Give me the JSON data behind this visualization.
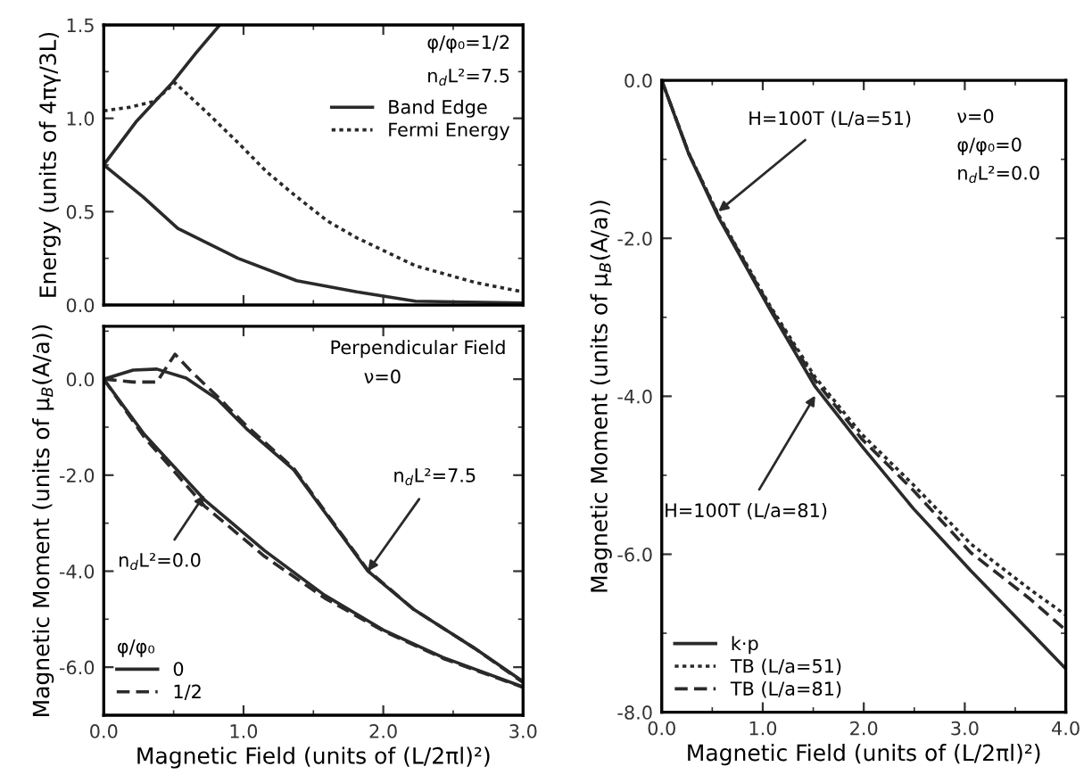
{
  "chart_data": [
    {
      "type": "line",
      "ylabel": "Energy (units of 4πγ/3L)",
      "xlim": [
        0,
        3
      ],
      "ylim": [
        0,
        1.5
      ],
      "xticks": [
        {
          "value": 0,
          "label": null
        },
        {
          "value": 1,
          "label": null
        },
        {
          "value": 2,
          "label": null
        },
        {
          "value": 3,
          "label": null
        }
      ],
      "yticks": [
        {
          "value": 0,
          "label": "0.0"
        },
        {
          "value": 0.5,
          "label": "0.5"
        },
        {
          "value": 1.0,
          "label": "1.0"
        },
        {
          "value": 1.5,
          "label": "1.5"
        }
      ],
      "tick_labels": "y",
      "grid": false,
      "legend": "top right",
      "annotations": [
        "φ/φ₀=1/2",
        "n$_{d}$L²=7.5"
      ],
      "series": [
        {
          "name": "Band Edge",
          "color": "#2a2a2a",
          "line_style": "solid",
          "x": [
            0,
            0.23,
            0.49,
            0.66,
            0.83
          ],
          "values": [
            0.75,
            0.98,
            1.19,
            1.35,
            1.5
          ]
        },
        {
          "color": "#2a2a2a",
          "line_style": "solid",
          "x": [
            0,
            0.28,
            0.53,
            0.96,
            1.38,
            1.81,
            2.23,
            3.0
          ],
          "values": [
            0.75,
            0.58,
            0.41,
            0.25,
            0.13,
            0.07,
            0.02,
            0.01
          ]
        },
        {
          "name": "Fermi Energy",
          "color": "#2a2a2a",
          "line_style": "dotted",
          "x": [
            0,
            0.19,
            0.36,
            0.51,
            0.74,
            0.96,
            1.17,
            1.38,
            1.6,
            1.81,
            2.23,
            2.66,
            3.0
          ],
          "values": [
            1.04,
            1.06,
            1.09,
            1.19,
            1.03,
            0.87,
            0.71,
            0.58,
            0.45,
            0.36,
            0.21,
            0.12,
            0.07
          ]
        }
      ]
    },
    {
      "type": "line",
      "xlabel": "Magnetic Field (units of (L/2πl)²)",
      "ylabel": "Magnetic Moment (units of μ$_{B}$(A/a))",
      "xlim": [
        0,
        3
      ],
      "ylim": [
        -7.0,
        1.1
      ],
      "xticks": [
        {
          "value": 0,
          "label": "0.0"
        },
        {
          "value": 1,
          "label": "1.0"
        },
        {
          "value": 2,
          "label": "2.0"
        },
        {
          "value": 3,
          "label": "3.0"
        }
      ],
      "yticks": [
        {
          "value": 0,
          "label": "0.0"
        },
        {
          "value": -2,
          "label": "-2.0"
        },
        {
          "value": -4,
          "label": "-4.0"
        },
        {
          "value": -6,
          "label": "-6.0"
        }
      ],
      "grid": false,
      "legend": "bottom left",
      "legend_title": "φ/φ₀",
      "annotations": [
        "Perpendicular Field",
        "ν=0",
        {
          "text": "n$_{d}$L²=0.0",
          "x": 0.72,
          "y": -2.41
        },
        {
          "text": "n$_{d}$L²=7.5",
          "x": 1.89,
          "y": -4.0
        }
      ],
      "series": [
        {
          "name": "0",
          "color": "#2a2a2a",
          "line_style": "solid",
          "x": [
            0,
            0.21,
            0.38,
            0.59,
            0.81,
            1.02,
            1.36,
            1.89,
            2.22,
            2.65,
            3.0
          ],
          "values": [
            0,
            0.19,
            0.21,
            0.02,
            -0.41,
            -1.03,
            -1.89,
            -4.0,
            -4.8,
            -5.6,
            -6.3
          ]
        },
        {
          "name": "1/2",
          "color": "#2a2a2a",
          "line_style": "dashed",
          "x": [
            0,
            0.21,
            0.38,
            0.51,
            0.63,
            0.81,
            1.02,
            1.36,
            1.89,
            2.22,
            2.65,
            3.0
          ],
          "values": [
            0,
            -0.06,
            -0.06,
            0.52,
            0.15,
            -0.35,
            -0.97,
            -1.86,
            -3.98,
            -4.8,
            -5.6,
            -6.32
          ]
        },
        {
          "color": "#2a2a2a",
          "line_style": "solid",
          "x": [
            0,
            0.29,
            0.72,
            1.15,
            1.58,
            2.01,
            2.43,
            3.0
          ],
          "values": [
            0,
            -1.15,
            -2.51,
            -3.57,
            -4.5,
            -5.24,
            -5.8,
            -6.41
          ]
        },
        {
          "color": "#2a2a2a",
          "line_style": "dashed",
          "x": [
            0,
            0.29,
            0.72,
            1.15,
            1.58,
            2.01,
            2.43,
            3.0
          ],
          "values": [
            0,
            -1.21,
            -2.64,
            -3.69,
            -4.56,
            -5.26,
            -5.82,
            -6.42
          ]
        }
      ]
    },
    {
      "type": "line",
      "xlabel": "Magnetic Field (units of (L/2πl)²)",
      "ylabel": "Magnetic Moment (units of μ$_{B}$(A/a))",
      "xlim": [
        0,
        4
      ],
      "ylim": [
        -8.0,
        0
      ],
      "xticks": [
        {
          "value": 0,
          "label": "0.0"
        },
        {
          "value": 1,
          "label": "1.0"
        },
        {
          "value": 2,
          "label": "2.0"
        },
        {
          "value": 3,
          "label": "3.0"
        },
        {
          "value": 4,
          "label": "4.0"
        }
      ],
      "yticks": [
        {
          "value": 0,
          "label": "0.0"
        },
        {
          "value": -2,
          "label": "-2.0"
        },
        {
          "value": -4,
          "label": "-4.0"
        },
        {
          "value": -6,
          "label": "-6.0"
        },
        {
          "value": -8,
          "label": "-8.0"
        }
      ],
      "grid": false,
      "legend": "bottom left",
      "annotations": [
        "ν=0",
        "φ/φ₀=0",
        "n$_{d}$L²=0.0",
        {
          "text": "H=100T (L/a=51)",
          "x": 0.56,
          "y": -1.66
        },
        {
          "text": "H=100T (L/a=81)",
          "x": 1.52,
          "y": -3.99
        }
      ],
      "series": [
        {
          "name": "k·p",
          "color": "#2a2a2a",
          "line_style": "solid",
          "x": [
            0,
            0.27,
            0.56,
            1.07,
            1.52,
            1.98,
            2.49,
            3.06,
            3.63,
            4.0
          ],
          "values": [
            0,
            -0.94,
            -1.73,
            -2.9,
            -3.88,
            -4.63,
            -5.42,
            -6.21,
            -6.96,
            -7.45
          ]
        },
        {
          "name": "TB (L/a=51)",
          "color": "#2a2a2a",
          "line_style": "dotted",
          "x": [
            0,
            0.27,
            0.56,
            1.07,
            1.52,
            1.98,
            2.49,
            3.06,
            3.63,
            4.0
          ],
          "values": [
            0,
            -0.93,
            -1.7,
            -2.85,
            -3.76,
            -4.48,
            -5.12,
            -5.87,
            -6.43,
            -6.77
          ]
        },
        {
          "name": "TB (L/a=81)",
          "color": "#2a2a2a",
          "line_style": "dashed",
          "x": [
            0,
            0.27,
            0.56,
            1.07,
            1.52,
            1.98,
            2.49,
            3.06,
            3.63,
            4.0
          ],
          "values": [
            0,
            -0.93,
            -1.71,
            -2.87,
            -3.8,
            -4.54,
            -5.19,
            -5.98,
            -6.55,
            -6.96
          ]
        }
      ]
    }
  ]
}
